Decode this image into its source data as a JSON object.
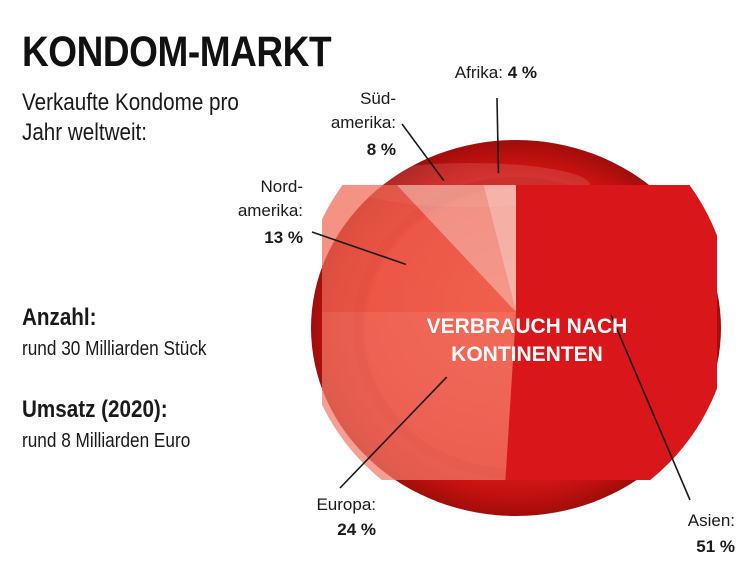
{
  "header": {
    "title": "KONDOM-MARKT",
    "subtitle": "Verkaufte Kondome pro Jahr weltweit:"
  },
  "stats": {
    "count_label": "Anzahl:",
    "count_value": "rund 30 Milliarden Stück",
    "revenue_label": "Umsatz (2020):",
    "revenue_value": "rund 8 Milliarden Euro"
  },
  "colors": {
    "condom_red": "#e0201c",
    "condom_dark": "#b30f0d",
    "slice_asien": "#d9161a",
    "slice_europa": "#f27a68",
    "slice_nordamerika": "#f06a55",
    "slice_suedamerika": "#f6b4a6",
    "slice_afrika": "#f9cfc4"
  },
  "chart_data": {
    "type": "pie",
    "title": "VERBRAUCH NACH KONTINENTEN",
    "center_line1": "VERBRAUCH NACH",
    "center_line2": "KONTINENTEN",
    "unit": "%",
    "slices": [
      {
        "name": "Asien:",
        "value": 51,
        "label": "51 %"
      },
      {
        "name": "Europa:",
        "value": 24,
        "label": "24 %"
      },
      {
        "name": "Nord- amerika:",
        "name_line1": "Nord-",
        "name_line2": "amerika:",
        "value": 13,
        "label": "13 %"
      },
      {
        "name": "Süd- amerika:",
        "name_line1": "Süd-",
        "name_line2": "amerika:",
        "value": 8,
        "label": "8 %"
      },
      {
        "name": "Afrika:",
        "value": 4,
        "label": "4 %"
      }
    ]
  }
}
